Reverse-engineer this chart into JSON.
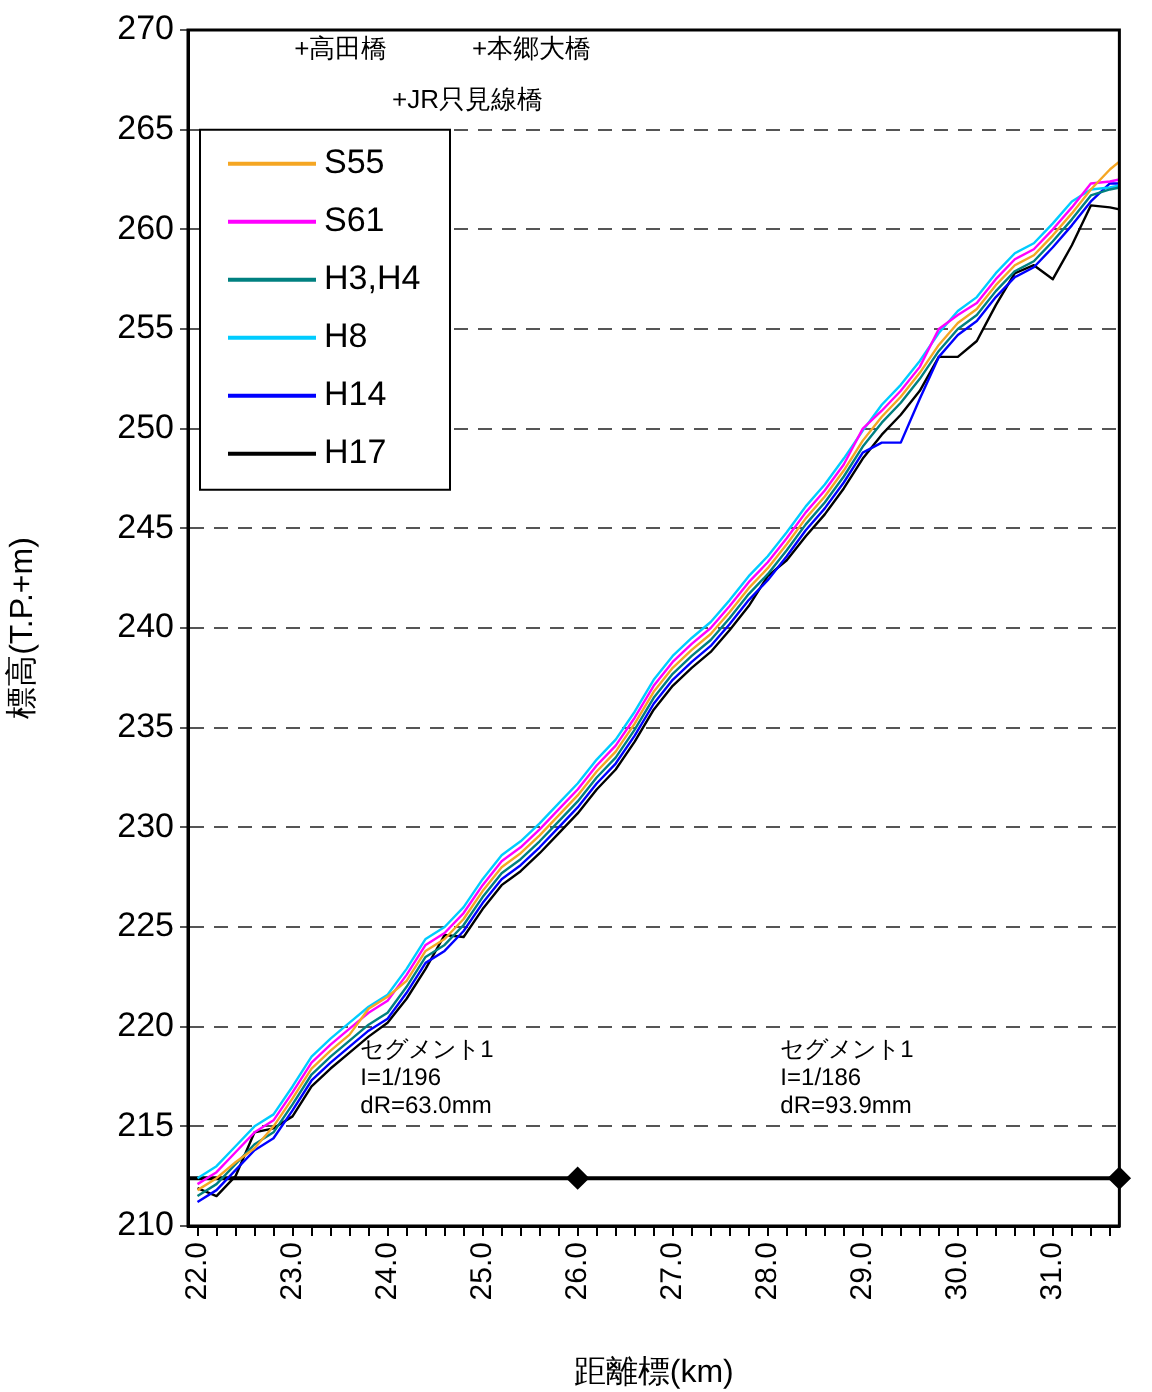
{
  "chart_data": {
    "type": "line",
    "xlabel": "距離標(km)",
    "ylabel": "標高(T.P.+m)",
    "x": [
      22.0,
      22.2,
      22.4,
      22.6,
      22.8,
      23.0,
      23.2,
      23.4,
      23.6,
      23.8,
      24.0,
      24.2,
      24.4,
      24.6,
      24.8,
      25.0,
      25.2,
      25.4,
      25.6,
      25.8,
      26.0,
      26.2,
      26.4,
      26.6,
      26.8,
      27.0,
      27.2,
      27.4,
      27.6,
      27.8,
      28.0,
      28.2,
      28.4,
      28.6,
      28.8,
      29.0,
      29.2,
      29.4,
      29.6,
      29.8,
      30.0,
      30.2,
      30.4,
      30.6,
      30.8,
      31.0,
      31.2,
      31.4,
      31.6,
      31.7
    ],
    "series": [
      {
        "name": "S55",
        "color": "#f5a623",
        "values": [
          211.8,
          212.4,
          213.2,
          213.9,
          215.0,
          216.4,
          217.9,
          218.8,
          219.6,
          220.9,
          221.5,
          222.3,
          223.8,
          224.4,
          225.4,
          226.8,
          228.0,
          228.7,
          229.6,
          230.6,
          231.6,
          232.8,
          233.8,
          235.2,
          236.8,
          238.0,
          238.9,
          239.7,
          240.8,
          242.0,
          243.0,
          244.2,
          245.5,
          246.6,
          247.9,
          249.4,
          250.6,
          251.6,
          252.8,
          254.2,
          255.3,
          256.0,
          257.2,
          258.2,
          258.7,
          259.7,
          260.8,
          262.0,
          263.0,
          263.4
        ]
      },
      {
        "name": "S61",
        "color": "#ff00ff",
        "values": [
          212.1,
          212.7,
          213.7,
          214.7,
          215.3,
          216.7,
          218.2,
          219.1,
          219.9,
          220.7,
          221.3,
          222.6,
          224.1,
          224.7,
          225.7,
          227.1,
          228.3,
          229.0,
          229.9,
          230.9,
          231.9,
          233.1,
          234.1,
          235.5,
          237.1,
          238.3,
          239.2,
          240.0,
          241.1,
          242.3,
          243.3,
          244.5,
          245.8,
          246.9,
          248.2,
          250.0,
          250.9,
          251.9,
          253.1,
          255.0,
          255.7,
          256.3,
          257.5,
          258.5,
          259.0,
          260.0,
          261.1,
          262.3,
          262.4,
          262.5
        ]
      },
      {
        "name": "H3,H4",
        "color": "#008080",
        "values": [
          211.5,
          212.1,
          213.1,
          214.1,
          214.7,
          216.1,
          217.6,
          218.5,
          219.3,
          220.1,
          220.7,
          222.0,
          223.5,
          224.1,
          225.1,
          226.5,
          227.7,
          228.4,
          229.3,
          230.3,
          231.3,
          232.5,
          233.5,
          234.9,
          236.5,
          237.7,
          238.6,
          239.4,
          240.5,
          241.7,
          242.7,
          243.9,
          245.2,
          246.3,
          247.6,
          249.1,
          250.3,
          251.3,
          252.5,
          253.9,
          255.0,
          255.7,
          256.9,
          257.9,
          258.4,
          259.4,
          260.5,
          261.7,
          262.0,
          262.1
        ]
      },
      {
        "name": "H8",
        "color": "#00ccff",
        "values": [
          212.4,
          213.0,
          214.0,
          215.0,
          215.6,
          217.0,
          218.5,
          219.4,
          220.2,
          221.0,
          221.6,
          222.9,
          224.4,
          225.0,
          226.0,
          227.4,
          228.6,
          229.3,
          230.2,
          231.2,
          232.2,
          233.4,
          234.4,
          235.8,
          237.4,
          238.6,
          239.5,
          240.3,
          241.4,
          242.6,
          243.6,
          244.8,
          246.1,
          247.2,
          248.5,
          249.9,
          251.2,
          252.2,
          253.4,
          254.8,
          255.9,
          256.6,
          257.8,
          258.8,
          259.3,
          260.3,
          261.4,
          262.0,
          262.1,
          262.2
        ]
      },
      {
        "name": "H14",
        "color": "#0000ff",
        "values": [
          211.2,
          211.8,
          212.8,
          213.8,
          214.4,
          215.8,
          217.3,
          218.2,
          219.0,
          219.8,
          220.4,
          221.7,
          223.2,
          223.8,
          224.8,
          226.2,
          227.4,
          228.1,
          229.0,
          230.0,
          231.0,
          232.2,
          233.2,
          234.6,
          236.2,
          237.4,
          238.3,
          239.1,
          240.2,
          241.4,
          242.4,
          243.6,
          244.9,
          246.0,
          247.3,
          248.8,
          249.3,
          249.3,
          251.5,
          253.6,
          254.7,
          255.4,
          256.6,
          257.6,
          258.1,
          259.1,
          260.2,
          261.4,
          262.3,
          262.3
        ]
      },
      {
        "name": "H17",
        "color": "#000000",
        "values": [
          211.9,
          211.5,
          212.5,
          214.7,
          214.9,
          215.5,
          217.0,
          217.9,
          218.7,
          219.5,
          220.2,
          221.4,
          222.9,
          224.6,
          224.5,
          225.9,
          227.1,
          227.8,
          228.7,
          229.7,
          230.7,
          231.9,
          232.9,
          234.3,
          235.9,
          237.1,
          238.0,
          238.8,
          239.9,
          241.1,
          242.6,
          243.4,
          244.6,
          245.7,
          247.0,
          248.5,
          249.7,
          250.7,
          251.9,
          253.6,
          253.6,
          254.4,
          256.2,
          257.8,
          258.2,
          257.5,
          259.2,
          261.2,
          261.1,
          261.0
        ]
      },
      {
        "type": "scatter",
        "marker": "diamond",
        "color": "#000000",
        "x": [
          26.0,
          31.7
        ],
        "values": [
          212.4,
          212.4
        ]
      }
    ],
    "xlim": [
      21.9,
      31.7
    ],
    "xticks": [
      {
        "value": 22.0,
        "label": "22.0"
      },
      {
        "value": 22.2,
        "label": null
      },
      {
        "value": 22.4,
        "label": null
      },
      {
        "value": 22.6,
        "label": null
      },
      {
        "value": 22.8,
        "label": null
      },
      {
        "value": 23.0,
        "label": "23.0"
      },
      {
        "value": 23.2,
        "label": null
      },
      {
        "value": 23.4,
        "label": null
      },
      {
        "value": 23.6,
        "label": null
      },
      {
        "value": 23.8,
        "label": null
      },
      {
        "value": 24.0,
        "label": "24.0"
      },
      {
        "value": 24.2,
        "label": null
      },
      {
        "value": 24.4,
        "label": null
      },
      {
        "value": 24.6,
        "label": null
      },
      {
        "value": 24.8,
        "label": null
      },
      {
        "value": 25.0,
        "label": "25.0"
      },
      {
        "value": 25.2,
        "label": null
      },
      {
        "value": 25.4,
        "label": null
      },
      {
        "value": 25.6,
        "label": null
      },
      {
        "value": 25.8,
        "label": null
      },
      {
        "value": 26.0,
        "label": "26.0"
      },
      {
        "value": 26.2,
        "label": null
      },
      {
        "value": 26.4,
        "label": null
      },
      {
        "value": 26.6,
        "label": null
      },
      {
        "value": 26.8,
        "label": null
      },
      {
        "value": 27.0,
        "label": "27.0"
      },
      {
        "value": 27.2,
        "label": null
      },
      {
        "value": 27.4,
        "label": null
      },
      {
        "value": 27.6,
        "label": null
      },
      {
        "value": 27.8,
        "label": null
      },
      {
        "value": 28.0,
        "label": "28.0"
      },
      {
        "value": 28.2,
        "label": null
      },
      {
        "value": 28.4,
        "label": null
      },
      {
        "value": 28.6,
        "label": null
      },
      {
        "value": 28.8,
        "label": null
      },
      {
        "value": 29.0,
        "label": "29.0"
      },
      {
        "value": 29.2,
        "label": null
      },
      {
        "value": 29.4,
        "label": null
      },
      {
        "value": 29.6,
        "label": null
      },
      {
        "value": 29.8,
        "label": null
      },
      {
        "value": 30.0,
        "label": "30.0"
      },
      {
        "value": 30.2,
        "label": null
      },
      {
        "value": 30.4,
        "label": null
      },
      {
        "value": 30.6,
        "label": null
      },
      {
        "value": 30.8,
        "label": null
      },
      {
        "value": 31.0,
        "label": "31.0"
      },
      {
        "value": 31.2,
        "label": null
      },
      {
        "value": 31.4,
        "label": null
      },
      {
        "value": 31.6,
        "label": null
      }
    ],
    "ylim": [
      210,
      270
    ],
    "yticks": [
      210,
      215,
      220,
      225,
      230,
      235,
      240,
      245,
      250,
      255,
      260,
      265,
      270
    ],
    "grid": "y",
    "legend": "top left",
    "marker": "none",
    "line_style": "solid",
    "ref_lines": [
      {
        "axis": "y",
        "value": 212.4,
        "color": "#000000",
        "line_style": "solid"
      }
    ],
    "annotations": [
      "+高田橋",
      "+本郷大橋",
      "+JR只見線橋",
      "セグメント1\nI=1/196\ndR=63.0mm",
      "セグメント1\nI=1/186\ndR=93.9mm"
    ]
  }
}
